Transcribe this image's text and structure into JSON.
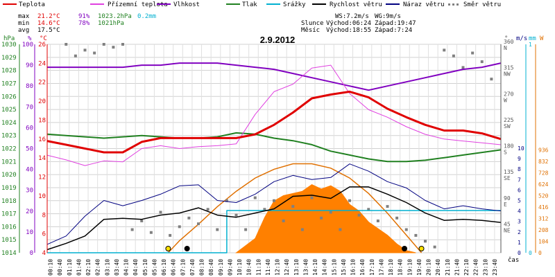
{
  "chart_data": {
    "type": "line",
    "title": "2.9.2012",
    "xlabel": "čas",
    "legend": [
      {
        "label": "Teplota",
        "color": "#e00000"
      },
      {
        "label": "Přízemní teplota",
        "color": "#e040e0"
      },
      {
        "label": "Vlhkost",
        "color": "#8000c0"
      },
      {
        "label": "Tlak",
        "color": "#208020"
      },
      {
        "label": "Srážky",
        "color": "#00b0d0"
      },
      {
        "label": "Rychlost větru",
        "color": "#000000"
      },
      {
        "label": "Náraz větru",
        "color": "#000080"
      },
      {
        "label": "Směr větru",
        "color": "#808080"
      }
    ],
    "stats": {
      "max": {
        "label": "max",
        "temp": "21.2°C",
        "hum": "91%",
        "press": "1023.2hPa",
        "rain": "0.2mm"
      },
      "min": {
        "label": "min",
        "temp": "14.6°C",
        "hum": "78%",
        "press": "1021hPa"
      },
      "avg": {
        "label": "avg",
        "temp": "17.5°C"
      }
    },
    "info": {
      "ws": "WS:7.2m/s",
      "wg": "WG:9m/s",
      "sun_label": "Slunce",
      "sun_rise": "Východ:06:24",
      "sun_set": "Západ:19:47",
      "moon_label": "Měsíc",
      "moon_rise": "Východ:18:55",
      "moon_set": "Západ:7:24"
    },
    "axes": {
      "pressure": {
        "unit": "hPa",
        "min": 1014,
        "max": 1030,
        "ticks": [
          "1014",
          "1015",
          "1016",
          "1017",
          "1018",
          "1019",
          "1020",
          "1021",
          "1022",
          "1023",
          "1024",
          "1025",
          "1026",
          "1027",
          "1028",
          "1029",
          "1030"
        ]
      },
      "humidity": {
        "unit": "%",
        "min": 0,
        "max": 100,
        "ticks": [
          "0",
          "10",
          "20",
          "30",
          "40",
          "50",
          "60",
          "70",
          "80",
          "90",
          "100"
        ]
      },
      "temperature": {
        "unit": "°C",
        "min": 4,
        "max": 26,
        "ticks": [
          "4",
          "6",
          "8",
          "10",
          "12",
          "14",
          "16",
          "18",
          "20",
          "22",
          "24",
          "26"
        ]
      },
      "direction": {
        "unit": "°",
        "ticks": [
          {
            "value": "45",
            "label": "NE"
          },
          {
            "value": "90",
            "label": "E"
          },
          {
            "value": "135",
            "label": "SE"
          },
          {
            "value": "180",
            "label": "S"
          },
          {
            "value": "225",
            "label": "SW"
          },
          {
            "value": "270",
            "label": "W"
          },
          {
            "value": "315",
            "label": "NW"
          },
          {
            "value": "360",
            "label": "N"
          }
        ]
      },
      "wind": {
        "unit": "m/s",
        "ticks": [
          "0",
          "1",
          "2",
          "3",
          "4",
          "5",
          "6",
          "7",
          "8",
          "9",
          "10"
        ]
      },
      "rain": {
        "unit": "mm",
        "ticks": [
          "0",
          "1"
        ]
      },
      "solar": {
        "unit": "W",
        "ticks": [
          "0",
          "104",
          "208",
          "312",
          "416",
          "520",
          "624",
          "728",
          "832",
          "936"
        ]
      },
      "time": {
        "ticks": [
          "00:10",
          "00:40",
          "01:10",
          "01:40",
          "02:10",
          "02:40",
          "03:10",
          "03:40",
          "04:10",
          "04:40",
          "05:10",
          "05:40",
          "06:10",
          "06:40",
          "07:10",
          "07:40",
          "08:10",
          "08:40",
          "09:10",
          "09:40",
          "10:10",
          "10:40",
          "11:10",
          "11:40",
          "12:10",
          "12:40",
          "13:10",
          "13:40",
          "14:10",
          "14:40",
          "15:10",
          "15:40",
          "16:10",
          "16:40",
          "17:10",
          "17:40",
          "18:10",
          "18:40",
          "19:10",
          "19:40",
          "20:10",
          "20:40",
          "21:10",
          "21:40",
          "22:10",
          "22:40",
          "23:10",
          "23:40"
        ]
      }
    },
    "series": [
      {
        "name": "Teplota",
        "axis": "temperature",
        "hours": [
          0,
          1,
          2,
          3,
          4,
          5,
          6,
          7,
          8,
          9,
          10,
          11,
          12,
          13,
          14,
          15,
          16,
          17,
          18,
          19,
          20,
          21,
          22,
          23,
          24
        ],
        "values": [
          15.8,
          15.4,
          15.0,
          14.6,
          14.6,
          15.7,
          16.1,
          16.1,
          16.1,
          16.1,
          16.1,
          16.5,
          17.5,
          18.8,
          20.3,
          20.7,
          21.0,
          20.4,
          19.2,
          18.3,
          17.5,
          16.9,
          16.9,
          16.6,
          16.0
        ]
      },
      {
        "name": "Přízemní teplota",
        "axis": "temperature",
        "hours": [
          0,
          1,
          2,
          3,
          4,
          5,
          6,
          7,
          8,
          9,
          10,
          11,
          12,
          13,
          14,
          15,
          16,
          17,
          18,
          19,
          20,
          21,
          22,
          23,
          24
        ],
        "values": [
          14.3,
          13.8,
          13.2,
          13.7,
          13.6,
          15.0,
          15.3,
          15.0,
          15.2,
          15.3,
          15.5,
          18.6,
          21.0,
          21.8,
          23.5,
          23.8,
          20.8,
          19.1,
          18.3,
          17.3,
          16.5,
          16.0,
          15.8,
          15.6,
          15.4
        ]
      },
      {
        "name": "Vlhkost",
        "axis": "humidity",
        "hours": [
          0,
          1,
          2,
          3,
          4,
          5,
          6,
          7,
          8,
          9,
          10,
          11,
          12,
          13,
          14,
          15,
          16,
          17,
          18,
          19,
          20,
          21,
          22,
          23,
          24
        ],
        "values": [
          89,
          89,
          89,
          89,
          89,
          90,
          90,
          91,
          91,
          91,
          90,
          89,
          88,
          86,
          84,
          82,
          80,
          78,
          80,
          82,
          84,
          86,
          88,
          89,
          91
        ]
      },
      {
        "name": "Tlak",
        "axis": "pressure",
        "hours": [
          0,
          1,
          2,
          3,
          4,
          5,
          6,
          7,
          8,
          9,
          10,
          11,
          12,
          13,
          14,
          15,
          16,
          17,
          18,
          19,
          20,
          21,
          22,
          23,
          24
        ],
        "values": [
          1023.1,
          1023.0,
          1022.9,
          1022.8,
          1022.9,
          1023.0,
          1022.9,
          1022.8,
          1022.8,
          1022.9,
          1023.2,
          1023.1,
          1022.8,
          1022.6,
          1022.3,
          1021.8,
          1021.5,
          1021.2,
          1021.0,
          1021.0,
          1021.1,
          1021.3,
          1021.5,
          1021.7,
          1021.9
        ]
      },
      {
        "name": "Srážky",
        "axis": "rain",
        "hours": [
          0,
          9.5,
          9.5,
          24
        ],
        "values": [
          0,
          0,
          0.2,
          0.2
        ]
      },
      {
        "name": "Rychlost větru",
        "axis": "wind",
        "hours": [
          0,
          1,
          2,
          3,
          4,
          5,
          6,
          7,
          8,
          9,
          10,
          11,
          12,
          13,
          14,
          15,
          16,
          17,
          18,
          19,
          20,
          21,
          22,
          23,
          24
        ],
        "values": [
          0.3,
          0.9,
          1.6,
          3.2,
          3.3,
          3.2,
          3.6,
          3.8,
          4.3,
          3.6,
          3.4,
          3.8,
          4.2,
          5.4,
          5.5,
          5.2,
          6.3,
          6.3,
          5.6,
          4.8,
          3.8,
          3.1,
          3.2,
          3.1,
          2.9
        ]
      },
      {
        "name": "Náraz větru",
        "axis": "wind",
        "hours": [
          0,
          1,
          2,
          3,
          4,
          5,
          6,
          7,
          8,
          9,
          10,
          11,
          12,
          13,
          14,
          15,
          16,
          17,
          18,
          19,
          20,
          21,
          22,
          23,
          24
        ],
        "values": [
          0.8,
          1.6,
          3.5,
          5.0,
          4.5,
          5.0,
          5.6,
          6.4,
          6.5,
          5.0,
          4.8,
          5.6,
          6.8,
          7.4,
          7.0,
          7.2,
          8.5,
          7.8,
          6.8,
          6.2,
          5.0,
          4.2,
          4.5,
          4.2,
          4.0
        ]
      },
      {
        "name": "Solar",
        "axis": "solar",
        "hours": [
          10,
          11,
          11.5,
          12,
          12.5,
          13,
          13.5,
          14,
          14.5,
          15,
          15.5,
          16,
          16.5,
          17,
          17.5,
          18,
          18.5,
          19,
          19.5
        ],
        "values": [
          0,
          130,
          320,
          470,
          520,
          540,
          560,
          620,
          580,
          610,
          560,
          440,
          380,
          280,
          220,
          160,
          80,
          20,
          0
        ]
      },
      {
        "name": "Sun theoretical",
        "axis": "solar",
        "hours": [
          6.4,
          7,
          8,
          9,
          10,
          11,
          12,
          13,
          14,
          15,
          16,
          17,
          18,
          19,
          19.8
        ],
        "values": [
          0,
          110,
          260,
          420,
          560,
          680,
          760,
          810,
          810,
          770,
          680,
          540,
          360,
          160,
          0
        ]
      },
      {
        "name": "Směr větru",
        "axis": "direction",
        "hours": [
          1,
          1.5,
          2,
          2.5,
          3,
          3.5,
          4,
          4.5,
          5,
          5.5,
          6,
          6.5,
          7,
          7.5,
          8,
          8.5,
          9,
          9.5,
          10,
          10.5,
          11,
          11.5,
          12,
          12.5,
          13,
          13.5,
          14,
          14.5,
          15,
          15.5,
          16,
          16.5,
          17,
          17.5,
          18,
          18.5,
          19,
          19.5,
          20,
          20.5,
          21,
          21.5,
          22,
          22.5,
          23,
          23.5
        ],
        "values": [
          360,
          340,
          350,
          345,
          360,
          355,
          360,
          40,
          55,
          35,
          70,
          30,
          45,
          60,
          50,
          75,
          40,
          90,
          65,
          40,
          95,
          75,
          90,
          55,
          80,
          40,
          95,
          60,
          70,
          40,
          90,
          65,
          75,
          55,
          80,
          60,
          40,
          30,
          20,
          10,
          350,
          340,
          320,
          345,
          330,
          300
        ]
      }
    ],
    "markers": [
      {
        "label": "sunrise",
        "hour": 6.4
      },
      {
        "label": "moonset",
        "hour": 7.4
      },
      {
        "label": "moonrise",
        "hour": 18.9
      },
      {
        "label": "sunset",
        "hour": 19.8
      }
    ]
  }
}
